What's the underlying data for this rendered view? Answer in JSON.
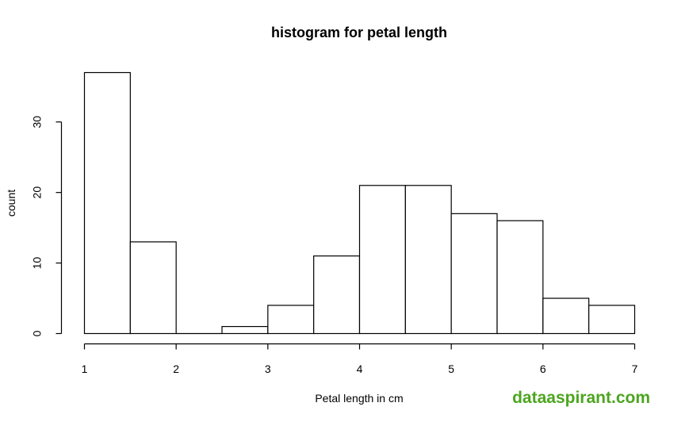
{
  "chart_data": {
    "type": "bar",
    "title": "histogram for petal length",
    "xlabel": "Petal length in cm",
    "ylabel": "count",
    "bins": [
      {
        "start": 1.0,
        "end": 1.5,
        "count": 37
      },
      {
        "start": 1.5,
        "end": 2.0,
        "count": 13
      },
      {
        "start": 2.0,
        "end": 2.5,
        "count": 0
      },
      {
        "start": 2.5,
        "end": 3.0,
        "count": 1
      },
      {
        "start": 3.0,
        "end": 3.5,
        "count": 4
      },
      {
        "start": 3.5,
        "end": 4.0,
        "count": 11
      },
      {
        "start": 4.0,
        "end": 4.5,
        "count": 21
      },
      {
        "start": 4.5,
        "end": 5.0,
        "count": 21
      },
      {
        "start": 5.0,
        "end": 5.5,
        "count": 17
      },
      {
        "start": 5.5,
        "end": 6.0,
        "count": 16
      },
      {
        "start": 6.0,
        "end": 6.5,
        "count": 5
      },
      {
        "start": 6.5,
        "end": 7.0,
        "count": 4
      }
    ],
    "xlim": [
      1,
      7
    ],
    "ylim": [
      0,
      37
    ],
    "xticks": [
      "1",
      "2",
      "3",
      "4",
      "5",
      "6",
      "7"
    ],
    "yticks": [
      "0",
      "10",
      "20",
      "30"
    ],
    "grid": false,
    "colors": {
      "bar_fill": "#ffffff",
      "bar_stroke": "#000000"
    }
  },
  "watermark": {
    "text": "dataaspirant.com",
    "color": "#4ca51f"
  }
}
